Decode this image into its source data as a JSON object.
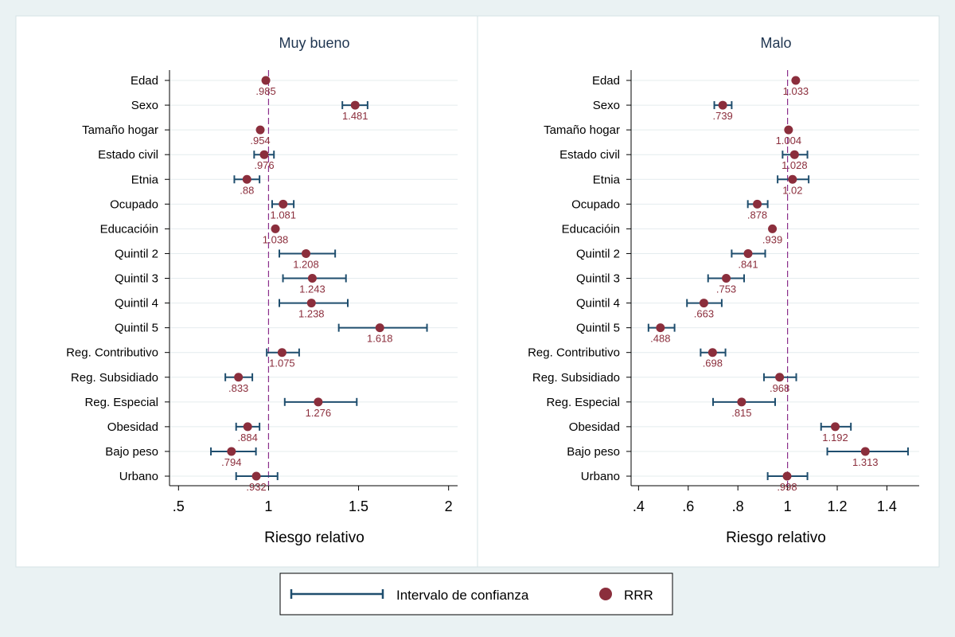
{
  "chart_data": {
    "type": "scatter",
    "variant": "coefficient-plot",
    "colors": {
      "point": "#8b2e3c",
      "ci": "#1f4e6e",
      "reference_line": "#8b2e8b",
      "background": "#eaf2f3",
      "plot_bg": "#ffffff"
    },
    "categories": [
      "Edad",
      "Sexo",
      "Tamaño hogar",
      "Estado civil",
      "Etnia",
      "Ocupado",
      "Educacióin",
      "Quintil 2",
      "Quintil 3",
      "Quintil 4",
      "Quintil 5",
      "Reg. Contributivo",
      "Reg. Subsidiado",
      "Reg. Especial",
      "Obesidad",
      "Bajo peso",
      "Urbano"
    ],
    "legend": {
      "position": "bottom",
      "ci_label": "Intervalo de confianza",
      "point_label": "RRR"
    },
    "panels": [
      {
        "title": "Muy bueno",
        "xlabel": "Riesgo relativo",
        "xlim": [
          0.45,
          2.05
        ],
        "xticks": [
          0.5,
          1,
          1.5,
          2
        ],
        "xtick_labels": [
          ".5",
          "1",
          "1.5",
          "2"
        ],
        "reference_x": 1,
        "rrr": [
          0.985,
          1.481,
          0.954,
          0.976,
          0.88,
          1.081,
          1.038,
          1.208,
          1.243,
          1.238,
          1.618,
          1.075,
          0.833,
          1.276,
          0.884,
          0.794,
          0.932
        ],
        "labels": [
          ".985",
          "1.481",
          ".954",
          ".976",
          ".88",
          "1.081",
          "1.038",
          "1.208",
          "1.243",
          "1.238",
          "1.618",
          "1.075",
          ".833",
          "1.276",
          ".884",
          ".794",
          ".932"
        ],
        "ci_low": [
          null,
          1.41,
          null,
          0.92,
          0.81,
          1.02,
          null,
          1.06,
          1.08,
          1.06,
          1.39,
          0.99,
          0.76,
          1.09,
          0.82,
          0.68,
          0.82
        ],
        "ci_high": [
          null,
          1.55,
          null,
          1.03,
          0.95,
          1.14,
          null,
          1.37,
          1.43,
          1.44,
          1.88,
          1.17,
          0.91,
          1.49,
          0.95,
          0.93,
          1.05
        ]
      },
      {
        "title": "Malo",
        "xlabel": "Riesgo relativo",
        "xlim": [
          0.37,
          1.53
        ],
        "xticks": [
          0.4,
          0.6,
          0.8,
          1,
          1.2,
          1.4
        ],
        "xtick_labels": [
          ".4",
          ".6",
          ".8",
          "1",
          "1.2",
          "1.4"
        ],
        "reference_x": 1,
        "rrr": [
          1.033,
          0.739,
          1.004,
          1.028,
          1.02,
          0.878,
          0.939,
          0.841,
          0.753,
          0.663,
          0.488,
          0.698,
          0.968,
          0.815,
          1.192,
          1.313,
          0.998
        ],
        "labels": [
          "1.033",
          ".739",
          "1.004",
          "1.028",
          "1.02",
          ".878",
          ".939",
          ".841",
          ".753",
          ".663",
          ".488",
          ".698",
          ".968",
          ".815",
          "1.192",
          "1.313",
          ".998"
        ],
        "ci_low": [
          null,
          0.705,
          null,
          0.98,
          0.96,
          0.84,
          null,
          0.775,
          0.68,
          0.595,
          0.44,
          0.65,
          0.905,
          0.7,
          1.135,
          1.16,
          0.92
        ],
        "ci_high": [
          null,
          0.775,
          null,
          1.08,
          1.085,
          0.92,
          null,
          0.91,
          0.825,
          0.735,
          0.545,
          0.75,
          1.035,
          0.95,
          1.255,
          1.485,
          1.08
        ]
      }
    ]
  }
}
